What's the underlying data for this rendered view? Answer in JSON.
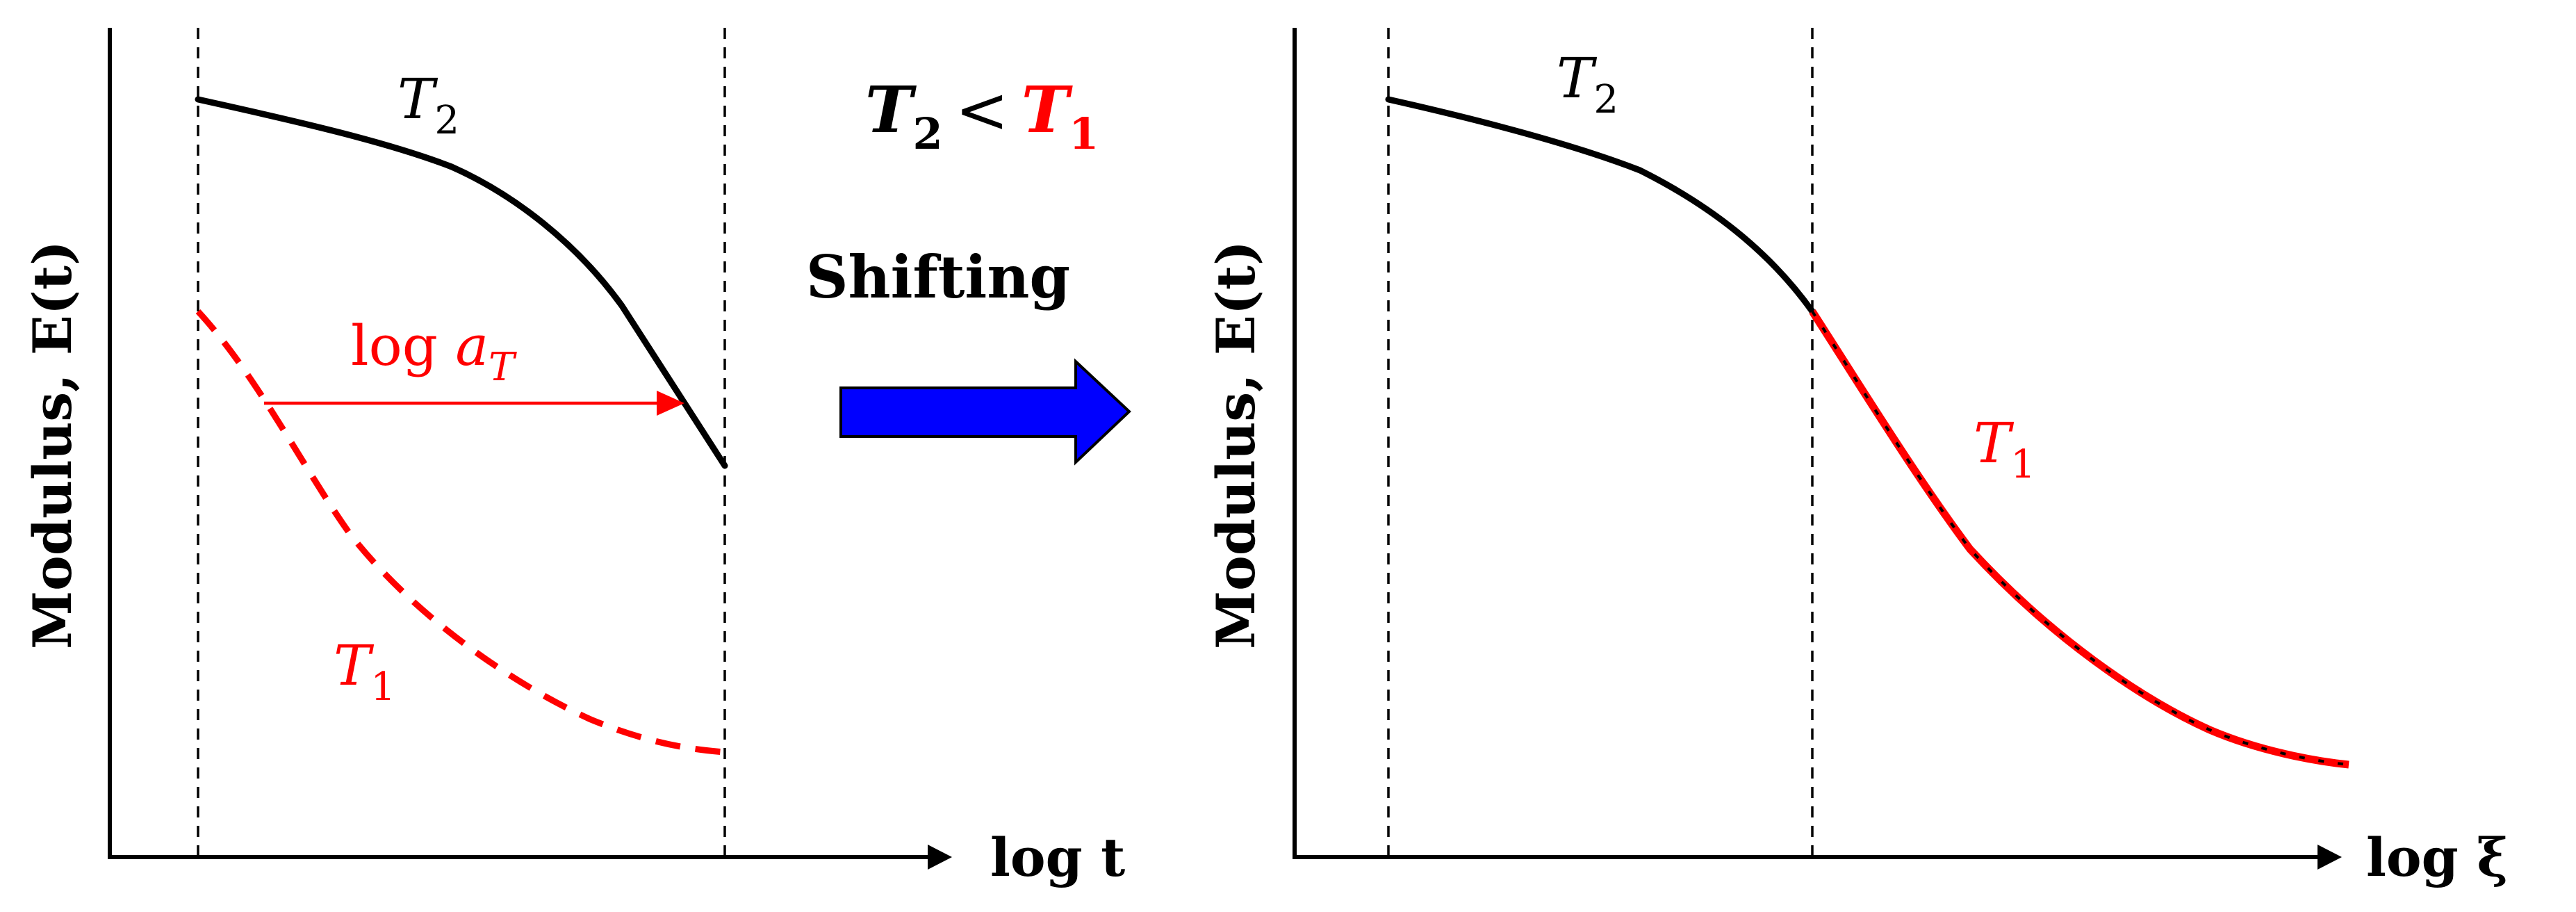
{
  "left_plot": {
    "ylabel": "Modulus, E(t)",
    "xlabel": "log t",
    "curve_upper_label": "T",
    "curve_upper_sub": "2",
    "curve_lower_label": "T",
    "curve_lower_sub": "1",
    "shift_label_prefix": "log ",
    "shift_label_var": "a",
    "shift_label_sub": "T"
  },
  "middle": {
    "inequality_left": "T",
    "inequality_left_sub": "2",
    "inequality_op": "<",
    "inequality_right": "T",
    "inequality_right_sub": "1",
    "process_label": "Shifting",
    "arrow_icon": "block-arrow-right-icon",
    "arrow_color": "#0000ff"
  },
  "right_plot": {
    "ylabel": "Modulus, E(t)",
    "xlabel": "log ξ",
    "curve_upper_label": "T",
    "curve_upper_sub": "2",
    "curve_lower_label": "T",
    "curve_lower_sub": "1"
  },
  "colors": {
    "T1": "#ff0000",
    "T2": "#000000",
    "arrow": "#0000ff"
  }
}
